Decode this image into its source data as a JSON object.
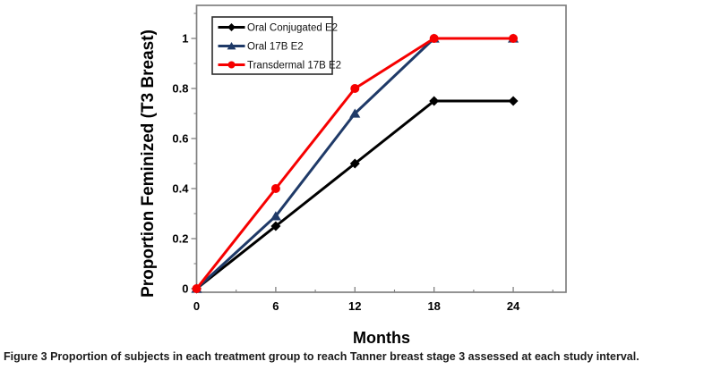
{
  "figure": {
    "caption_label": "Figure 3",
    "caption_text": " Proportion of subjects in each treatment group to reach Tanner breast stage 3 assessed at each study interval."
  },
  "chart_data": {
    "type": "line",
    "x": [
      0,
      6,
      12,
      18,
      24
    ],
    "x_tick_labels": [
      "0",
      "6",
      "12",
      "18",
      "24"
    ],
    "y_tick_values": [
      0,
      0.2,
      0.4,
      0.6,
      0.8,
      1
    ],
    "y_tick_labels": [
      "0",
      "0.2",
      "0.4",
      "0.6",
      "0.8",
      "1"
    ],
    "xlabel": "Months",
    "ylabel": "Proportion Feminized (T3 Breast)",
    "xlim": [
      0,
      28
    ],
    "ylim": [
      0,
      1.13
    ],
    "grid": false,
    "legend_position": "top-left-inside",
    "axis_color": "#808080",
    "legend_border_color": "#2b2b2b",
    "series": [
      {
        "name": "Oral Conjugated E2",
        "values": [
          0,
          0.25,
          0.5,
          0.75,
          0.75
        ],
        "color": "#000000",
        "marker": "diamond"
      },
      {
        "name": "Oral 17B E2",
        "values": [
          0,
          0.29,
          0.7,
          1.0,
          1.0
        ],
        "color": "#1f3a68",
        "marker": "triangle"
      },
      {
        "name": "Transdermal 17B E2",
        "values": [
          0,
          0.4,
          0.8,
          1.0,
          1.0
        ],
        "color": "#f60000",
        "marker": "circle"
      }
    ]
  }
}
